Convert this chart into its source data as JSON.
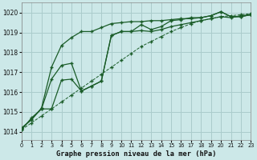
{
  "title": "Graphe pression niveau de la mer (hPa)",
  "xlim": [
    0,
    23
  ],
  "ylim": [
    1013.6,
    1020.5
  ],
  "yticks": [
    1014,
    1015,
    1016,
    1017,
    1018,
    1019,
    1020
  ],
  "xticks": [
    0,
    1,
    2,
    3,
    4,
    5,
    6,
    7,
    8,
    9,
    10,
    11,
    12,
    13,
    14,
    15,
    16,
    17,
    18,
    19,
    20,
    21,
    22,
    23
  ],
  "bg_color": "#cce8e8",
  "grid_color": "#aacccc",
  "line_color": "#1a5c28",
  "line1_dotted": [
    1014.1,
    1014.45,
    1014.8,
    1015.15,
    1015.5,
    1015.85,
    1016.2,
    1016.55,
    1016.9,
    1017.25,
    1017.6,
    1017.95,
    1018.3,
    1018.55,
    1018.8,
    1019.05,
    1019.25,
    1019.45,
    1019.6,
    1019.7,
    1019.8,
    1019.85,
    1019.9,
    1019.95
  ],
  "line2_marked": [
    1014.1,
    1014.7,
    1015.15,
    1015.15,
    1016.6,
    1016.65,
    1016.05,
    1016.3,
    1016.55,
    1018.85,
    1019.05,
    1019.05,
    1019.1,
    1019.05,
    1019.15,
    1019.3,
    1019.4,
    1019.5,
    1019.6,
    1019.7,
    1019.8,
    1019.75,
    1019.85,
    1019.9
  ],
  "line3_marked": [
    1014.15,
    1014.65,
    1015.15,
    1016.65,
    1017.35,
    1017.45,
    1016.05,
    1016.3,
    1016.55,
    1018.85,
    1019.05,
    1019.05,
    1019.4,
    1019.15,
    1019.3,
    1019.6,
    1019.65,
    1019.75,
    1019.75,
    1019.85,
    1020.05,
    1019.8,
    1019.8,
    1019.9
  ],
  "line4_marked": [
    1014.2,
    1014.6,
    1015.2,
    1017.25,
    1018.35,
    1018.75,
    1019.05,
    1019.05,
    1019.25,
    1019.45,
    1019.5,
    1019.55,
    1019.55,
    1019.6,
    1019.6,
    1019.65,
    1019.7,
    1019.7,
    1019.75,
    1019.85,
    1020.05,
    1019.8,
    1019.8,
    1019.9
  ],
  "line_width": 0.9,
  "marker": "+",
  "marker_size": 3.5
}
